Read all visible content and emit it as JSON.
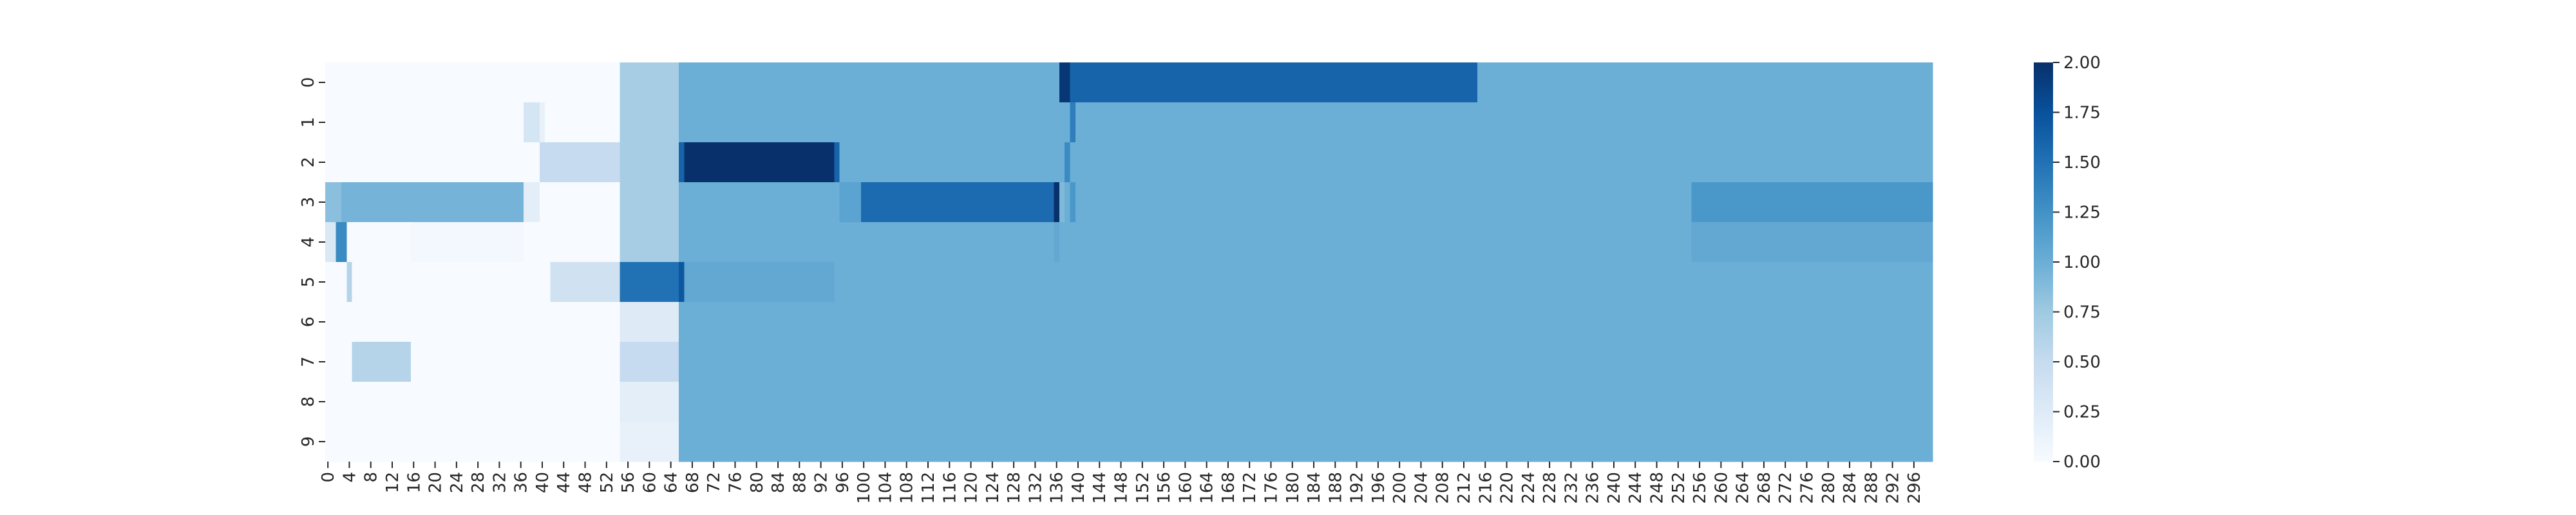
{
  "chart_data": {
    "type": "heatmap",
    "title": "",
    "xlabel": "",
    "ylabel": "",
    "colormap": "Blues",
    "vmin": 0,
    "vmax": 2,
    "n_cols": 300,
    "n_rows": 10,
    "x_tick_labels": [
      "0",
      "4",
      "8",
      "12",
      "16",
      "20",
      "24",
      "28",
      "32",
      "36",
      "40",
      "44",
      "48",
      "52",
      "56",
      "60",
      "64",
      "68",
      "72",
      "76",
      "80",
      "84",
      "88",
      "92",
      "96",
      "100",
      "104",
      "108",
      "112",
      "116",
      "120",
      "124",
      "128",
      "132",
      "136",
      "140",
      "144",
      "148",
      "152",
      "156",
      "160",
      "164",
      "168",
      "172",
      "176",
      "180",
      "184",
      "188",
      "192",
      "196",
      "200",
      "204",
      "208",
      "212",
      "216",
      "220",
      "224",
      "228",
      "232",
      "236",
      "240",
      "244",
      "248",
      "252",
      "256",
      "260",
      "264",
      "268",
      "272",
      "276",
      "280",
      "284",
      "288",
      "292",
      "296"
    ],
    "y_tick_labels": [
      "0",
      "1",
      "2",
      "3",
      "4",
      "5",
      "6",
      "7",
      "8",
      "9"
    ],
    "colorbar_ticks": [
      "0.00",
      "0.25",
      "0.50",
      "0.75",
      "1.00",
      "1.25",
      "1.50",
      "1.75",
      "2.00"
    ],
    "row_segments": [
      [
        [
          0,
          55,
          0.0
        ],
        [
          55,
          66,
          0.7
        ],
        [
          66,
          137,
          1.0
        ],
        [
          137,
          139,
          1.95
        ],
        [
          139,
          215,
          1.6
        ],
        [
          215,
          300,
          1.0
        ]
      ],
      [
        [
          0,
          37,
          0.0
        ],
        [
          37,
          40,
          0.35
        ],
        [
          40,
          41,
          0.15
        ],
        [
          41,
          55,
          0.0
        ],
        [
          55,
          66,
          0.7
        ],
        [
          66,
          139,
          1.0
        ],
        [
          139,
          140,
          1.4
        ],
        [
          140,
          300,
          1.0
        ]
      ],
      [
        [
          0,
          40,
          0.0
        ],
        [
          40,
          55,
          0.5
        ],
        [
          55,
          66,
          0.7
        ],
        [
          66,
          67,
          1.6
        ],
        [
          67,
          95,
          2.0
        ],
        [
          95,
          96,
          1.6
        ],
        [
          96,
          138,
          1.0
        ],
        [
          138,
          139,
          1.3
        ],
        [
          139,
          300,
          1.0
        ]
      ],
      [
        [
          0,
          3,
          0.85
        ],
        [
          3,
          37,
          0.95
        ],
        [
          37,
          40,
          0.2
        ],
        [
          40,
          55,
          0.0
        ],
        [
          55,
          66,
          0.7
        ],
        [
          66,
          96,
          1.0
        ],
        [
          96,
          100,
          1.1
        ],
        [
          100,
          136,
          1.55
        ],
        [
          136,
          137,
          2.0
        ],
        [
          137,
          138,
          0.9
        ],
        [
          138,
          139,
          1.0
        ],
        [
          139,
          140,
          1.2
        ],
        [
          140,
          255,
          1.0
        ],
        [
          255,
          300,
          1.2
        ]
      ],
      [
        [
          0,
          2,
          0.3
        ],
        [
          2,
          4,
          1.3
        ],
        [
          4,
          16,
          0.0
        ],
        [
          16,
          37,
          0.05
        ],
        [
          37,
          55,
          0.0
        ],
        [
          55,
          66,
          0.7
        ],
        [
          66,
          136,
          1.0
        ],
        [
          136,
          137,
          1.05
        ],
        [
          137,
          255,
          1.0
        ],
        [
          255,
          300,
          1.05
        ]
      ],
      [
        [
          0,
          4,
          0.0
        ],
        [
          4,
          5,
          0.6
        ],
        [
          5,
          42,
          0.0
        ],
        [
          42,
          55,
          0.4
        ],
        [
          55,
          66,
          1.5
        ],
        [
          66,
          67,
          1.7
        ],
        [
          67,
          95,
          1.05
        ],
        [
          95,
          300,
          1.0
        ]
      ],
      [
        [
          0,
          55,
          0.0
        ],
        [
          55,
          66,
          0.25
        ],
        [
          66,
          300,
          1.0
        ]
      ],
      [
        [
          0,
          5,
          0.0
        ],
        [
          5,
          16,
          0.6
        ],
        [
          16,
          55,
          0.0
        ],
        [
          55,
          66,
          0.5
        ],
        [
          66,
          300,
          1.0
        ]
      ],
      [
        [
          0,
          55,
          0.0
        ],
        [
          55,
          66,
          0.2
        ],
        [
          66,
          300,
          1.0
        ]
      ],
      [
        [
          0,
          55,
          0.0
        ],
        [
          55,
          66,
          0.15
        ],
        [
          66,
          300,
          1.0
        ]
      ]
    ]
  }
}
